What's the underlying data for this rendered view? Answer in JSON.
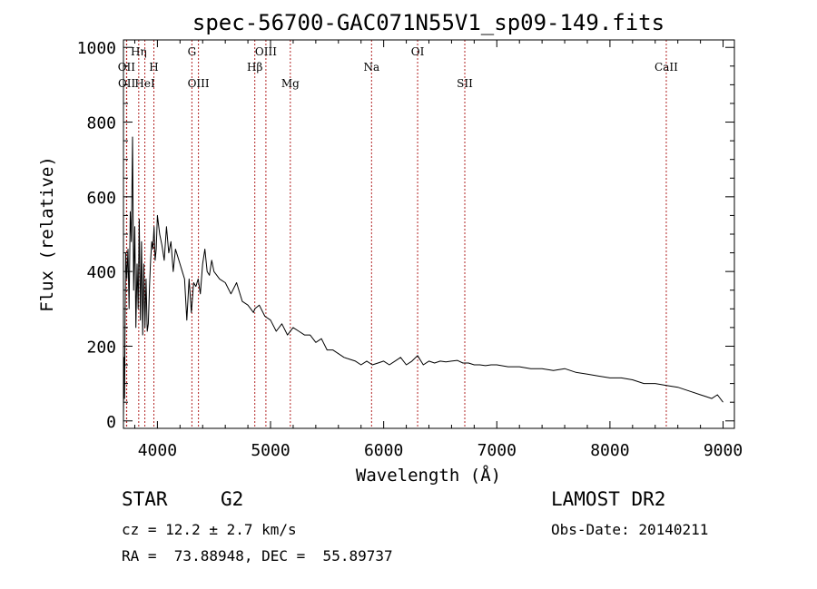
{
  "chart_data": {
    "type": "line",
    "title": "spec-56700-GAC071N55V1_sp09-149.fits",
    "xlabel": "Wavelength (Å)",
    "ylabel": "Flux (relative)",
    "xlim": [
      3700,
      9100
    ],
    "ylim": [
      -20,
      1020
    ],
    "xticks": [
      4000,
      5000,
      6000,
      7000,
      8000,
      9000
    ],
    "yticks": [
      0,
      200,
      400,
      600,
      800,
      1000
    ],
    "grid": false,
    "line_color": "#000000",
    "marker_color": "#b22222",
    "series": [
      {
        "x": [
          3700,
          3705,
          3710,
          3715,
          3720,
          3730,
          3740,
          3750,
          3760,
          3770,
          3780,
          3790,
          3800,
          3810,
          3820,
          3830,
          3840,
          3850,
          3860,
          3870,
          3880,
          3890,
          3900,
          3910,
          3920,
          3930,
          3940,
          3950,
          3960,
          3970,
          3980,
          3990,
          4000,
          4020,
          4040,
          4060,
          4080,
          4100,
          4120,
          4140,
          4160,
          4180,
          4200,
          4220,
          4240,
          4260,
          4280,
          4300,
          4320,
          4340,
          4360,
          4380,
          4400,
          4420,
          4440,
          4460,
          4480,
          4500,
          4550,
          4600,
          4650,
          4700,
          4750,
          4800,
          4850,
          4860,
          4900,
          4950,
          5000,
          5050,
          5100,
          5150,
          5200,
          5250,
          5300,
          5350,
          5400,
          5450,
          5500,
          5550,
          5600,
          5650,
          5700,
          5750,
          5800,
          5850,
          5900,
          5950,
          6000,
          6050,
          6100,
          6150,
          6200,
          6250,
          6300,
          6350,
          6400,
          6450,
          6500,
          6550,
          6600,
          6650,
          6700,
          6750,
          6800,
          6850,
          6900,
          6950,
          7000,
          7100,
          7200,
          7300,
          7400,
          7500,
          7600,
          7700,
          7800,
          7900,
          8000,
          8100,
          8200,
          8300,
          8400,
          8500,
          8600,
          8700,
          8800,
          8850,
          8900,
          8950,
          9000
        ],
        "y": [
          10,
          170,
          60,
          300,
          450,
          380,
          460,
          300,
          560,
          480,
          760,
          350,
          520,
          250,
          420,
          300,
          540,
          270,
          480,
          230,
          420,
          250,
          380,
          240,
          260,
          360,
          430,
          480,
          460,
          520,
          430,
          460,
          550,
          500,
          470,
          430,
          520,
          450,
          480,
          400,
          460,
          440,
          420,
          400,
          380,
          270,
          380,
          290,
          370,
          360,
          380,
          340,
          420,
          460,
          400,
          390,
          430,
          400,
          380,
          370,
          340,
          370,
          320,
          310,
          290,
          300,
          310,
          280,
          270,
          240,
          260,
          230,
          250,
          240,
          230,
          230,
          210,
          220,
          190,
          190,
          180,
          170,
          165,
          160,
          150,
          160,
          150,
          155,
          160,
          150,
          160,
          170,
          150,
          160,
          175,
          150,
          160,
          155,
          160,
          158,
          160,
          162,
          155,
          155,
          150,
          150,
          148,
          150,
          150,
          145,
          145,
          140,
          140,
          135,
          140,
          130,
          125,
          120,
          115,
          115,
          110,
          100,
          100,
          95,
          90,
          80,
          70,
          65,
          60,
          70,
          50
        ]
      }
    ],
    "line_markers": [
      {
        "name": "OII",
        "wavelength": 3727,
        "row": "upper"
      },
      {
        "name": "OII",
        "wavelength": 3729,
        "row": "lower"
      },
      {
        "name": "Hη",
        "wavelength": 3835,
        "row": "top"
      },
      {
        "name": "HeI",
        "wavelength": 3889,
        "row": "lower"
      },
      {
        "name": "H",
        "wavelength": 3969,
        "row": "upper"
      },
      {
        "name": "G",
        "wavelength": 4305,
        "row": "top"
      },
      {
        "name": "OIII",
        "wavelength": 4363,
        "row": "lower"
      },
      {
        "name": "Hβ",
        "wavelength": 4861,
        "row": "upper"
      },
      {
        "name": "OIII",
        "wavelength": 4959,
        "row": "top"
      },
      {
        "name": "Mg",
        "wavelength": 5175,
        "row": "lower"
      },
      {
        "name": "Na",
        "wavelength": 5893,
        "row": "upper"
      },
      {
        "name": "OI",
        "wavelength": 6300,
        "row": "top"
      },
      {
        "name": "SII",
        "wavelength": 6717,
        "row": "lower"
      },
      {
        "name": "CaII",
        "wavelength": 8498,
        "row": "upper"
      }
    ]
  },
  "info": {
    "object_class": "STAR",
    "subclass": "G2",
    "cz": "cz = 12.2 ± 2.7 km/s",
    "radec": "RA =  73.88948, DEC =  55.89737",
    "survey": "LAMOST DR2",
    "obs_date": "Obs-Date: 20140211"
  }
}
